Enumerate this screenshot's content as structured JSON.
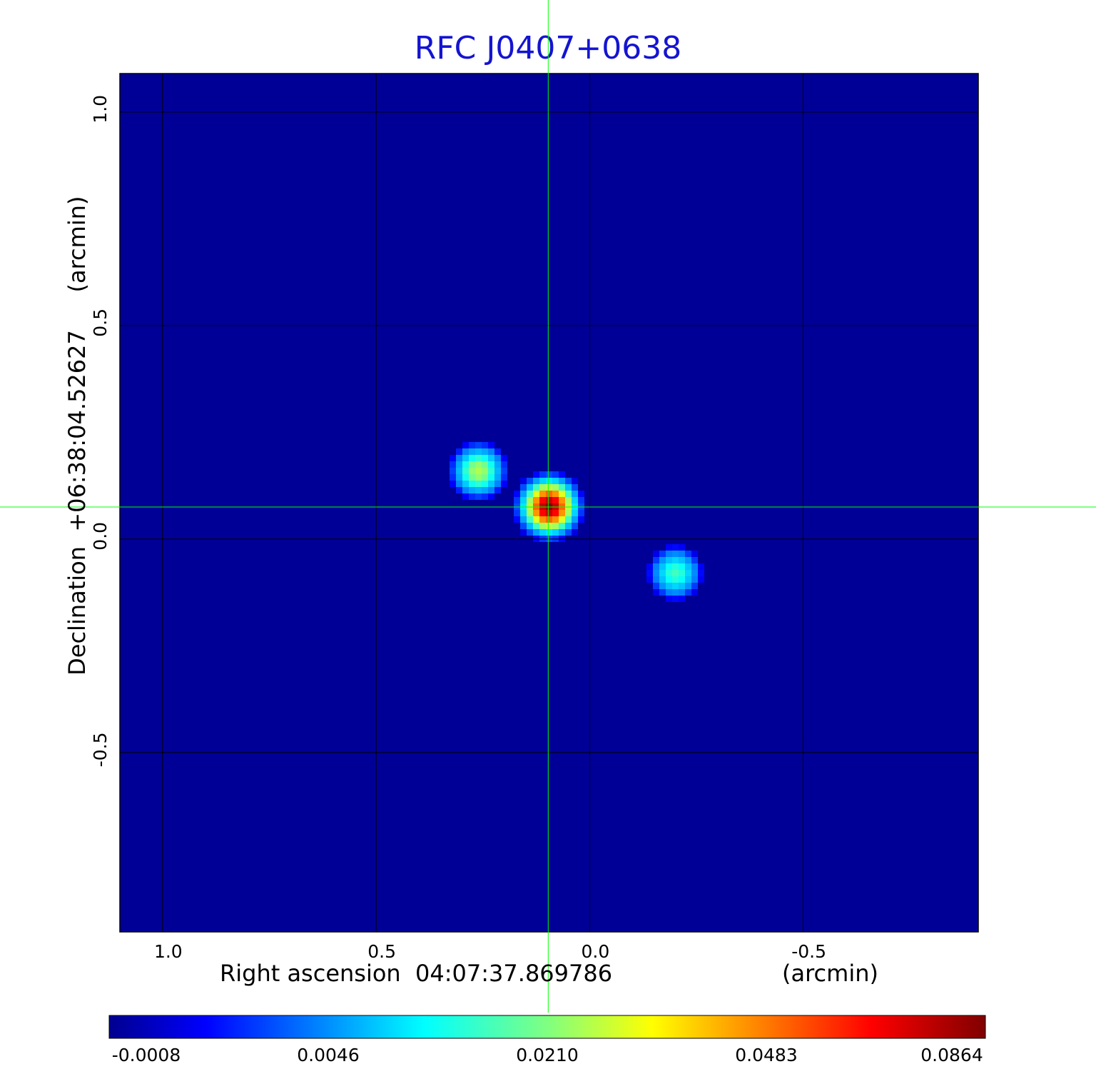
{
  "chart_data": {
    "type": "heatmap",
    "title": "RFC J0407+0638",
    "xlabel": "Right ascension  04:07:37.869786",
    "xunit": "(arcmin)",
    "ylabel": "Declination  +06:38:04.52627",
    "yunit": "(arcmin)",
    "xlim": [
      1.1,
      -0.91
    ],
    "ylim": [
      -0.92,
      1.09
    ],
    "x_axis_inverted": true,
    "xticks": [
      "1.0",
      "0.5",
      "0.0",
      "-0.5"
    ],
    "xtick_values": [
      1.0,
      0.5,
      0.0,
      -0.5
    ],
    "yticks": [
      "1.0",
      "0.5",
      "0.0",
      "-0.5"
    ],
    "ytick_values": [
      1.0,
      0.5,
      0.0,
      -0.5
    ],
    "grid": true,
    "crosshair": {
      "x": 0.097,
      "y": 0.075,
      "color": "#00ff00"
    },
    "colormap": "jet",
    "colorbar": {
      "orientation": "horizontal",
      "position": "bottom",
      "ticks": [
        "-0.0008",
        "0.0046",
        "0.0210",
        "0.0483",
        "0.0864"
      ]
    },
    "background_level": -0.0003,
    "sources": [
      {
        "x": 0.095,
        "y": 0.075,
        "peak": 0.0864
      },
      {
        "x": 0.26,
        "y": 0.16,
        "peak": 0.026
      },
      {
        "x": -0.2,
        "y": -0.08,
        "peak": 0.017
      }
    ]
  },
  "colors": {
    "title": "#1414d2",
    "grid": "#000000",
    "crosshair": "#00ff00"
  }
}
